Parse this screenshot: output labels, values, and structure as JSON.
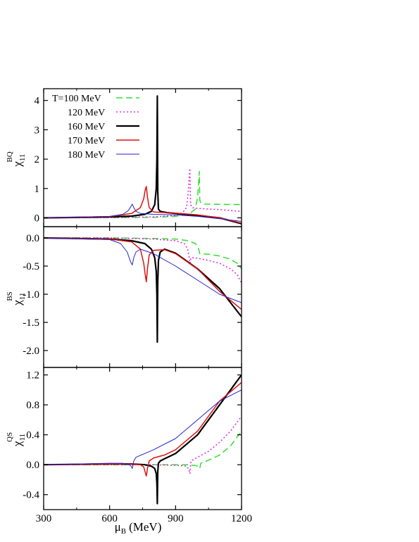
{
  "chart_data": {
    "type": "line",
    "xlabel": "μB (MeV)",
    "xlabel_main": "μ",
    "xlabel_sub": "B",
    "xlabel_unit": "(MeV)",
    "xlim": [
      300,
      1200
    ],
    "xticks": [
      300,
      600,
      900,
      1200
    ],
    "legend_placement": "top-left",
    "series_styles": [
      {
        "label": "T=100 MeV",
        "color": "#33dd33",
        "dash": "9,5",
        "width": 1.5
      },
      {
        "label": "120 MeV",
        "color": "#dd33dd",
        "dash": "2,3",
        "width": 1.6
      },
      {
        "label": "160 MeV",
        "color": "#000000",
        "dash": "",
        "width": 2.2
      },
      {
        "label": "170 MeV",
        "color": "#dd1111",
        "dash": "",
        "width": 1.5
      },
      {
        "label": "180 MeV",
        "color": "#2222cc",
        "dash": "",
        "width": 1.0
      }
    ],
    "panels": [
      {
        "ylabel": "χ11BQ",
        "ylabel_main": "χ",
        "ylabel_sub": "11",
        "ylabel_sup": "BQ",
        "ylim": [
          -0.3,
          4.4
        ],
        "yticks": [
          0,
          1,
          2,
          3,
          4
        ],
        "ytick_labels": [
          "0",
          "1",
          "2",
          "3",
          "4"
        ],
        "series": [
          {
            "name": "T=100 MeV",
            "x": [
              300,
              600,
              800,
              900,
              960,
              990,
              1000,
              1005,
              1008,
              1010,
              1015,
              1030,
              1100,
              1200
            ],
            "y": [
              0,
              0.01,
              0.02,
              0.05,
              0.12,
              0.3,
              0.7,
              1.2,
              1.58,
              0.6,
              0.5,
              0.47,
              0.46,
              0.45
            ]
          },
          {
            "name": "120 MeV",
            "x": [
              300,
              600,
              800,
              900,
              930,
              950,
              958,
              962,
              965,
              968,
              975,
              1000,
              1100,
              1200
            ],
            "y": [
              0,
              0.01,
              0.03,
              0.08,
              0.15,
              0.35,
              0.9,
              1.4,
              1.68,
              0.45,
              0.35,
              0.32,
              0.28,
              0.22
            ]
          },
          {
            "name": "160 MeV",
            "x": [
              300,
              600,
              700,
              760,
              790,
              805,
              812,
              815,
              817,
              819,
              822,
              830,
              860,
              900,
              1000,
              1100,
              1200
            ],
            "y": [
              0,
              0.03,
              0.06,
              0.12,
              0.22,
              0.45,
              1.0,
              2.0,
              4.15,
              0.9,
              0.3,
              0.22,
              0.18,
              0.15,
              0.08,
              0.0,
              -0.2
            ]
          },
          {
            "name": "170 MeV",
            "x": [
              300,
              600,
              700,
              740,
              755,
              762,
              767,
              772,
              780,
              800,
              850,
              900,
              1000,
              1100,
              1200
            ],
            "y": [
              0,
              0.04,
              0.15,
              0.35,
              0.65,
              0.95,
              1.07,
              0.7,
              0.35,
              0.2,
              0.18,
              0.16,
              0.1,
              0.0,
              -0.18
            ]
          },
          {
            "name": "180 MeV",
            "x": [
              300,
              600,
              660,
              685,
              698,
              703,
              710,
              720,
              740,
              800,
              900,
              1000,
              1100,
              1200
            ],
            "y": [
              0,
              0.05,
              0.12,
              0.25,
              0.4,
              0.47,
              0.35,
              0.22,
              0.15,
              0.12,
              0.1,
              0.05,
              -0.03,
              -0.12
            ]
          }
        ]
      },
      {
        "ylabel": "χ11BS",
        "ylabel_main": "χ",
        "ylabel_sub": "11",
        "ylabel_sup": "BS",
        "ylim": [
          -2.3,
          0.2
        ],
        "yticks": [
          0,
          -0.5,
          -1.0,
          -1.5,
          -2.0
        ],
        "ytick_labels": [
          "0.0",
          "-0.5",
          "-1.0",
          "-1.5",
          "-2.0"
        ],
        "series": [
          {
            "name": "T=100 MeV",
            "x": [
              300,
              600,
              800,
              900,
              960,
              990,
              1000,
              1005,
              1010,
              1050,
              1100,
              1150,
              1180,
              1200
            ],
            "y": [
              0,
              0,
              -0.01,
              -0.02,
              -0.05,
              -0.1,
              -0.15,
              -0.2,
              -0.28,
              -0.29,
              -0.32,
              -0.38,
              -0.45,
              -0.55
            ]
          },
          {
            "name": "120 MeV",
            "x": [
              300,
              600,
              800,
              900,
              940,
              955,
              962,
              966,
              970,
              1000,
              1050,
              1100,
              1150,
              1180,
              1200
            ],
            "y": [
              0,
              0,
              -0.02,
              -0.05,
              -0.1,
              -0.2,
              -0.35,
              -0.45,
              -0.35,
              -0.36,
              -0.4,
              -0.45,
              -0.55,
              -0.65,
              -0.8
            ]
          },
          {
            "name": "160 MeV",
            "x": [
              300,
              600,
              700,
              760,
              790,
              805,
              812,
              815,
              817,
              819,
              822,
              830,
              850,
              900,
              1000,
              1100,
              1200
            ],
            "y": [
              0,
              -0.02,
              -0.05,
              -0.1,
              -0.2,
              -0.35,
              -0.6,
              -1.0,
              -1.85,
              -0.8,
              -0.4,
              -0.25,
              -0.2,
              -0.27,
              -0.55,
              -0.9,
              -1.4
            ]
          },
          {
            "name": "170 MeV",
            "x": [
              300,
              600,
              700,
              740,
              755,
              762,
              767,
              772,
              780,
              800,
              850,
              900,
              1000,
              1100,
              1200
            ],
            "y": [
              0,
              -0.02,
              -0.07,
              -0.2,
              -0.45,
              -0.65,
              -0.78,
              -0.55,
              -0.3,
              -0.22,
              -0.21,
              -0.28,
              -0.55,
              -0.95,
              -1.27
            ]
          },
          {
            "name": "180 MeV",
            "x": [
              300,
              600,
              650,
              680,
              695,
              703,
              710,
              720,
              740,
              800,
              900,
              1000,
              1100,
              1200
            ],
            "y": [
              0,
              -0.03,
              -0.1,
              -0.25,
              -0.42,
              -0.48,
              -0.35,
              -0.25,
              -0.2,
              -0.28,
              -0.5,
              -0.75,
              -1.0,
              -1.15
            ]
          }
        ]
      },
      {
        "ylabel": "χ11QS",
        "ylabel_main": "χ",
        "ylabel_sub": "11",
        "ylabel_sup": "QS",
        "ylim": [
          -0.6,
          1.3
        ],
        "yticks": [
          -0.4,
          0,
          0.4,
          0.8,
          1.2
        ],
        "ytick_labels": [
          "-0.4",
          "0.0",
          "0.4",
          "0.8",
          "1.2"
        ],
        "series": [
          {
            "name": "T=100 MeV",
            "x": [
              300,
              600,
              800,
              950,
              990,
              1000,
              1005,
              1010,
              1015,
              1050,
              1100,
              1150,
              1200
            ],
            "y": [
              0,
              0,
              0,
              0,
              -0.01,
              -0.02,
              -0.03,
              -0.05,
              0.02,
              0.06,
              0.13,
              0.25,
              0.45
            ]
          },
          {
            "name": "120 MeV",
            "x": [
              300,
              600,
              800,
              920,
              950,
              958,
              962,
              965,
              970,
              1000,
              1050,
              1100,
              1150,
              1200
            ],
            "y": [
              0,
              0,
              0,
              -0.01,
              -0.02,
              -0.05,
              -0.08,
              -0.12,
              0.05,
              0.1,
              0.18,
              0.3,
              0.45,
              0.65
            ]
          },
          {
            "name": "160 MeV",
            "x": [
              300,
              600,
              700,
              760,
              790,
              805,
              812,
              815,
              817,
              819,
              822,
              830,
              850,
              900,
              1000,
              1100,
              1200
            ],
            "y": [
              0,
              0.01,
              0.01,
              0.0,
              -0.02,
              -0.05,
              -0.12,
              -0.25,
              -0.52,
              -0.1,
              0.02,
              0.05,
              0.08,
              0.15,
              0.4,
              0.8,
              1.2
            ]
          },
          {
            "name": "170 MeV",
            "x": [
              300,
              600,
              700,
              740,
              755,
              762,
              767,
              772,
              780,
              800,
              850,
              900,
              1000,
              1100,
              1200
            ],
            "y": [
              0,
              0.01,
              0.01,
              0.0,
              -0.03,
              -0.1,
              -0.15,
              -0.05,
              0.05,
              0.09,
              0.13,
              0.2,
              0.45,
              0.85,
              1.1
            ]
          },
          {
            "name": "180 MeV",
            "x": [
              300,
              600,
              660,
              690,
              698,
              703,
              710,
              720,
              760,
              800,
              900,
              1000,
              1100,
              1200
            ],
            "y": [
              0,
              0.02,
              0.02,
              0.0,
              -0.02,
              -0.05,
              0.05,
              0.1,
              0.15,
              0.2,
              0.35,
              0.6,
              0.85,
              1.0
            ]
          }
        ]
      }
    ]
  }
}
